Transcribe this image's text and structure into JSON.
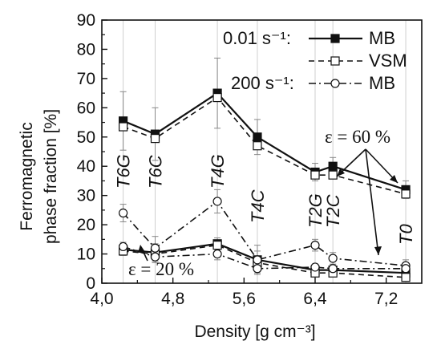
{
  "chart_data": {
    "type": "line",
    "xlabel": "Density [g cm⁻³]",
    "ylabel_lines": [
      "Ferromagnetic",
      "phase fraction [%]"
    ],
    "xlim": [
      4.0,
      7.6
    ],
    "ylim": [
      0,
      90
    ],
    "x_ticks": [
      4.0,
      4.8,
      5.6,
      6.4,
      7.2
    ],
    "x_tick_labels": [
      "4,0",
      "4,8",
      "5,6",
      "6,4",
      "7,2"
    ],
    "y_ticks": [
      0,
      10,
      20,
      30,
      40,
      50,
      60,
      70,
      80,
      90
    ],
    "y_tick_labels": [
      "0",
      "10",
      "20",
      "30",
      "40",
      "50",
      "60",
      "70",
      "80",
      "90"
    ],
    "grid": "vertical",
    "legend": {
      "placement": "top-right",
      "rate_low": "0.01 s⁻¹:",
      "rate_high": "200 s⁻¹:",
      "entries": [
        {
          "label": "MB",
          "style": "solid",
          "marker": "square-filled"
        },
        {
          "label": "VSM",
          "style": "dashed",
          "marker": "square-open"
        },
        {
          "label": "MB",
          "style": "dashdot",
          "marker": "circle-open"
        }
      ]
    },
    "sample_labels": [
      {
        "text": "T6G",
        "x": 4.24
      },
      {
        "text": "T6C",
        "x": 4.6
      },
      {
        "text": "T4G",
        "x": 5.3
      },
      {
        "text": "T4C",
        "x": 5.75
      },
      {
        "text": "T2G",
        "x": 6.4
      },
      {
        "text": "T2C",
        "x": 6.6
      },
      {
        "text": "T0",
        "x": 7.42
      }
    ],
    "x": [
      4.24,
      4.6,
      5.3,
      5.75,
      6.4,
      6.6,
      7.42
    ],
    "groups": [
      {
        "strain": "ε = 60 %",
        "series": [
          {
            "rate": "0.01 s⁻¹",
            "method": "MB",
            "style": "solid",
            "marker": "square-filled",
            "values": [
              55.5,
              51,
              65,
              50,
              38,
              40,
              32
            ],
            "errors": [
              10,
              9,
              12,
              6,
              3,
              3,
              3
            ]
          },
          {
            "rate": "0.01 s⁻¹",
            "method": "VSM",
            "style": "dashed",
            "marker": "square-open",
            "values": [
              53.5,
              49.5,
              63.5,
              47,
              37,
              37,
              30.5
            ],
            "errors": [
              0,
              0,
              0,
              0,
              0,
              0,
              0
            ]
          }
        ]
      },
      {
        "strain": "ε = 20 %",
        "series": [
          {
            "rate": "0.01 s⁻¹",
            "method": "MB",
            "style": "solid",
            "marker": "square-filled",
            "values": [
              11.5,
              10.5,
              13.5,
              8,
              4.5,
              4.5,
              3.5
            ],
            "errors": [
              2,
              3,
              2,
              5,
              2,
              2,
              2
            ]
          },
          {
            "rate": "0.01 s⁻¹",
            "method": "VSM",
            "style": "dashed",
            "marker": "square-open",
            "values": [
              11,
              10,
              13,
              7,
              3.5,
              3.5,
              2
            ],
            "errors": [
              0,
              0,
              0,
              0,
              0,
              0,
              0
            ]
          },
          {
            "rate": "200 s⁻¹",
            "method": "MB",
            "style": "dashdot",
            "marker": "circle-open",
            "values": [
              24,
              12,
              28,
              8,
              13,
              8.5,
              6
            ],
            "errors": [
              3,
              4,
              4,
              3,
              2,
              2,
              2
            ]
          },
          {
            "rate": "200 s⁻¹",
            "method": "MB",
            "style": "dashdot",
            "marker": "circle-open",
            "values": [
              12.5,
              9,
              10,
              5,
              5.5,
              5,
              5
            ],
            "errors": [
              1.5,
              2,
              2,
              1.5,
              1,
              1,
              1
            ]
          }
        ]
      }
    ],
    "annotations": [
      {
        "text": "ε = 60 %"
      },
      {
        "text": "ε = 20 %"
      }
    ]
  }
}
